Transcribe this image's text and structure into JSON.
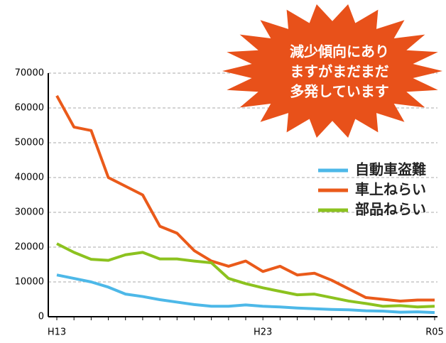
{
  "chart_data": {
    "type": "line",
    "annotation": [
      "減少傾向にあり",
      "ますがまだまだ",
      "多発しています"
    ],
    "categories": [
      "H13",
      null,
      null,
      null,
      null,
      null,
      null,
      null,
      null,
      null,
      null,
      null,
      "H23",
      null,
      null,
      null,
      null,
      null,
      null,
      null,
      null,
      null,
      "R05"
    ],
    "series": [
      {
        "name": "自動車盗難",
        "color": "#4db8e8",
        "values": [
          12000,
          11000,
          10000,
          8500,
          6500,
          5800,
          4900,
          4200,
          3500,
          3000,
          3000,
          3400,
          3000,
          2800,
          2500,
          2300,
          2100,
          2000,
          1700,
          1600,
          1300,
          1400,
          1200
        ]
      },
      {
        "name": "車上ねらい",
        "color": "#ea5a1a",
        "values": [
          63500,
          54500,
          53500,
          40000,
          37500,
          35000,
          26000,
          24000,
          19000,
          16000,
          14500,
          16000,
          13000,
          14500,
          12000,
          12500,
          10500,
          8000,
          5500,
          5000,
          4500,
          4800,
          4800
        ]
      },
      {
        "name": "部品ねらい",
        "color": "#8cc21f",
        "values": [
          21000,
          18500,
          16500,
          16200,
          17800,
          18500,
          16600,
          16600,
          16000,
          15500,
          11000,
          9500,
          8300,
          7300,
          6300,
          6500,
          5500,
          4500,
          3800,
          3000,
          3200,
          2800,
          3000
        ]
      }
    ],
    "ylim": [
      0,
      70000
    ],
    "yticks": [
      0,
      10000,
      20000,
      30000,
      40000,
      50000,
      60000,
      70000
    ],
    "grid": true,
    "legend": "right"
  }
}
